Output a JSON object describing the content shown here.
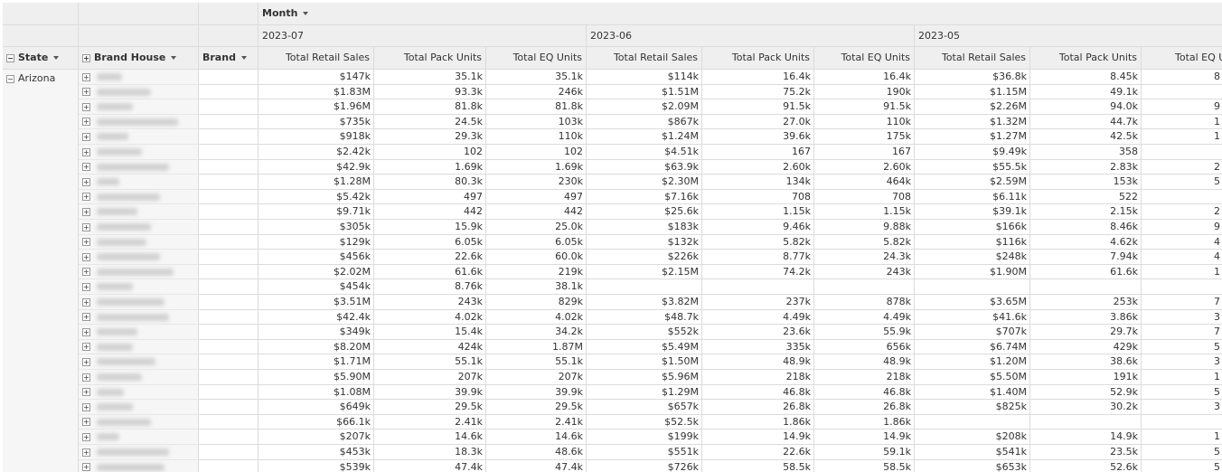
{
  "header": {
    "column_field": "Month",
    "row_fields": [
      "State",
      "Brand House",
      "Brand"
    ],
    "months": [
      "2023-07",
      "2023-06",
      "2023-05"
    ],
    "measures": [
      "Total Retail Sales",
      "Total Pack Units",
      "Total EQ Units"
    ]
  },
  "table": {
    "state": "Arizona",
    "rows": [
      [
        "$147k",
        "35.1k",
        "35.1k",
        "$114k",
        "16.4k",
        "16.4k",
        "$36.8k",
        "8.45k",
        "8"
      ],
      [
        "$1.83M",
        "93.3k",
        "246k",
        "$1.51M",
        "75.2k",
        "190k",
        "$1.15M",
        "49.1k",
        null
      ],
      [
        "$1.96M",
        "81.8k",
        "81.8k",
        "$2.09M",
        "91.5k",
        "91.5k",
        "$2.26M",
        "94.0k",
        "9"
      ],
      [
        "$735k",
        "24.5k",
        "103k",
        "$867k",
        "27.0k",
        "110k",
        "$1.32M",
        "44.7k",
        "1"
      ],
      [
        "$918k",
        "29.3k",
        "110k",
        "$1.24M",
        "39.6k",
        "175k",
        "$1.27M",
        "42.5k",
        "1"
      ],
      [
        "$2.42k",
        "102",
        "102",
        "$4.51k",
        "167",
        "167",
        "$9.49k",
        "358",
        null
      ],
      [
        "$42.9k",
        "1.69k",
        "1.69k",
        "$63.9k",
        "2.60k",
        "2.60k",
        "$55.5k",
        "2.83k",
        "2"
      ],
      [
        "$1.28M",
        "80.3k",
        "230k",
        "$2.30M",
        "134k",
        "464k",
        "$2.59M",
        "153k",
        "5"
      ],
      [
        "$5.42k",
        "497",
        "497",
        "$7.16k",
        "708",
        "708",
        "$6.11k",
        "522",
        null
      ],
      [
        "$9.71k",
        "442",
        "442",
        "$25.6k",
        "1.15k",
        "1.15k",
        "$39.1k",
        "2.15k",
        "2"
      ],
      [
        "$305k",
        "15.9k",
        "25.0k",
        "$183k",
        "9.46k",
        "9.88k",
        "$166k",
        "8.46k",
        "9"
      ],
      [
        "$129k",
        "6.05k",
        "6.05k",
        "$132k",
        "5.82k",
        "5.82k",
        "$116k",
        "4.62k",
        "4"
      ],
      [
        "$456k",
        "22.6k",
        "60.0k",
        "$226k",
        "8.77k",
        "24.3k",
        "$248k",
        "7.94k",
        "4"
      ],
      [
        "$2.02M",
        "61.6k",
        "219k",
        "$2.15M",
        "74.2k",
        "243k",
        "$1.90M",
        "61.6k",
        "1"
      ],
      [
        "$454k",
        "8.76k",
        "38.1k",
        null,
        null,
        null,
        null,
        null,
        null
      ],
      [
        "$3.51M",
        "243k",
        "829k",
        "$3.82M",
        "237k",
        "878k",
        "$3.65M",
        "253k",
        "7"
      ],
      [
        "$42.4k",
        "4.02k",
        "4.02k",
        "$48.7k",
        "4.49k",
        "4.49k",
        "$41.6k",
        "3.86k",
        "3"
      ],
      [
        "$349k",
        "15.4k",
        "34.2k",
        "$552k",
        "23.6k",
        "55.9k",
        "$707k",
        "29.7k",
        "7"
      ],
      [
        "$8.20M",
        "424k",
        "1.87M",
        "$5.49M",
        "335k",
        "656k",
        "$6.74M",
        "429k",
        "5"
      ],
      [
        "$1.71M",
        "55.1k",
        "55.1k",
        "$1.50M",
        "48.9k",
        "48.9k",
        "$1.20M",
        "38.6k",
        "3"
      ],
      [
        "$5.90M",
        "207k",
        "207k",
        "$5.96M",
        "218k",
        "218k",
        "$5.50M",
        "191k",
        "1"
      ],
      [
        "$1.08M",
        "39.9k",
        "39.9k",
        "$1.29M",
        "46.8k",
        "46.8k",
        "$1.40M",
        "52.9k",
        "5"
      ],
      [
        "$649k",
        "29.5k",
        "29.5k",
        "$657k",
        "26.8k",
        "26.8k",
        "$825k",
        "30.2k",
        "3"
      ],
      [
        "$66.1k",
        "2.41k",
        "2.41k",
        "$52.5k",
        "1.86k",
        "1.86k",
        null,
        null,
        null
      ],
      [
        "$207k",
        "14.6k",
        "14.6k",
        "$199k",
        "14.9k",
        "14.9k",
        "$208k",
        "14.9k",
        "1"
      ],
      [
        "$453k",
        "18.3k",
        "48.6k",
        "$551k",
        "22.6k",
        "59.1k",
        "$541k",
        "23.5k",
        "5"
      ],
      [
        "$539k",
        "47.4k",
        "47.4k",
        "$726k",
        "58.5k",
        "58.5k",
        "$653k",
        "52.6k",
        "5"
      ]
    ]
  }
}
